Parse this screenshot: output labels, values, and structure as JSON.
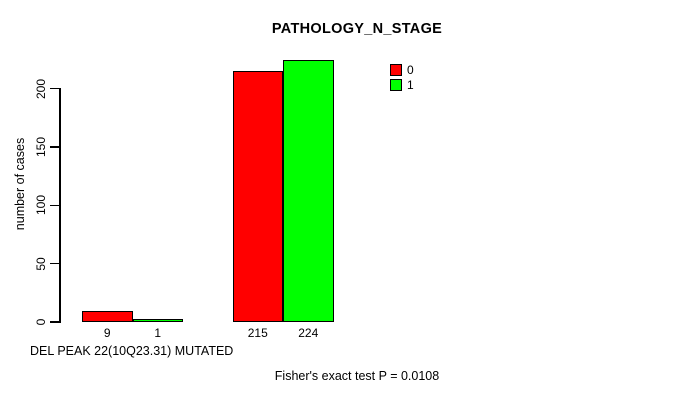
{
  "chart_data": {
    "type": "bar",
    "title": "PATHOLOGY_N_STAGE",
    "ylabel": "number of cases",
    "xlabel": "DEL PEAK 22(10Q23.31) MUTATED",
    "annotation": "Fisher's exact test P = 0.0108",
    "yticks": [
      0,
      50,
      100,
      150,
      200
    ],
    "ylim": [
      0,
      230
    ],
    "grid": false,
    "legend_position": "top-right-inside",
    "categories": [
      "",
      ""
    ],
    "series": [
      {
        "name": "0",
        "color": "#ff0000",
        "values": [
          9,
          215
        ]
      },
      {
        "name": "1",
        "color": "#00ff00",
        "values": [
          1,
          224
        ]
      }
    ],
    "bar_value_labels": [
      "9",
      "1",
      "215",
      "224"
    ]
  },
  "colors": {
    "background": "#ffffff",
    "axis": "#000000",
    "text": "#000000",
    "series_0": "#ff0000",
    "series_1": "#00ff00"
  }
}
